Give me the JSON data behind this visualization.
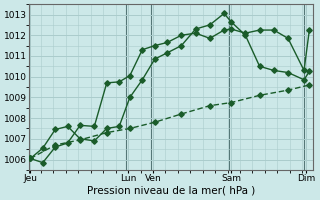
{
  "xlabel": "Pression niveau de la mer( hPa )",
  "bg_color": "#cce8e8",
  "grid_color": "#aacccc",
  "line_color": "#1a5c2a",
  "ylim": [
    1005.5,
    1013.5
  ],
  "yticks": [
    1006,
    1007,
    1008,
    1009,
    1010,
    1011,
    1012,
    1013
  ],
  "xlim": [
    0,
    8.0
  ],
  "xtick_positions": [
    0.05,
    2.8,
    3.5,
    5.7,
    7.8
  ],
  "xtick_labels": [
    "Jeu",
    "Lun",
    "Ven",
    "Sam",
    "Dim"
  ],
  "vline_positions": [
    2.75,
    3.45,
    5.65,
    7.75
  ],
  "line1_x": [
    0.05,
    0.4,
    0.75,
    1.1,
    1.45,
    1.85,
    2.2,
    2.55,
    2.85,
    3.2,
    3.55,
    3.9,
    4.3,
    4.7,
    5.1,
    5.5,
    5.7,
    6.1,
    6.5,
    6.9,
    7.3,
    7.75,
    7.9
  ],
  "line1_y": [
    1006.05,
    1005.85,
    1006.6,
    1006.8,
    1007.65,
    1007.6,
    1009.7,
    1009.75,
    1010.05,
    1011.3,
    1011.5,
    1011.65,
    1012.0,
    1012.1,
    1011.85,
    1012.25,
    1012.3,
    1012.1,
    1012.25,
    1012.25,
    1011.85,
    1010.3,
    1012.25
  ],
  "line2_x": [
    0.05,
    0.4,
    0.75,
    1.1,
    1.45,
    1.85,
    2.2,
    2.55,
    2.85,
    3.2,
    3.55,
    3.9,
    4.3,
    4.7,
    5.1,
    5.5,
    5.7,
    6.1,
    6.5,
    6.9,
    7.3,
    7.75,
    7.9
  ],
  "line2_y": [
    1006.05,
    1006.55,
    1007.45,
    1007.6,
    1007.0,
    1006.9,
    1007.5,
    1007.6,
    1009.0,
    1009.85,
    1010.85,
    1011.15,
    1011.5,
    1012.3,
    1012.5,
    1013.05,
    1012.65,
    1012.0,
    1010.5,
    1010.3,
    1010.2,
    1009.85,
    1010.25
  ],
  "line3_x": [
    0.05,
    0.75,
    1.45,
    2.2,
    2.85,
    3.55,
    4.3,
    5.1,
    5.7,
    6.5,
    7.3,
    7.9
  ],
  "line3_y": [
    1006.05,
    1006.7,
    1006.95,
    1007.3,
    1007.5,
    1007.8,
    1008.2,
    1008.6,
    1008.75,
    1009.1,
    1009.35,
    1009.6
  ],
  "marker": "D",
  "markersize": 2.8,
  "linewidth": 1.0
}
